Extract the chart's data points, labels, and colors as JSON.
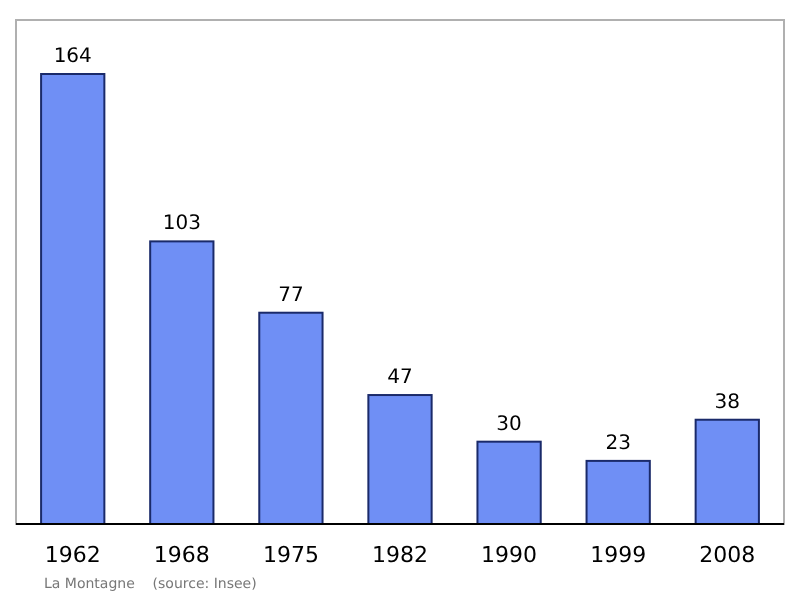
{
  "chart_data": {
    "type": "bar",
    "categories": [
      "1962",
      "1968",
      "1975",
      "1982",
      "1990",
      "1999",
      "2008"
    ],
    "values": [
      164,
      103,
      77,
      47,
      30,
      23,
      38
    ],
    "color": "#6f8ff5",
    "data_labels": true,
    "annotations": [
      "La Montagne    (source: Insee)"
    ]
  }
}
